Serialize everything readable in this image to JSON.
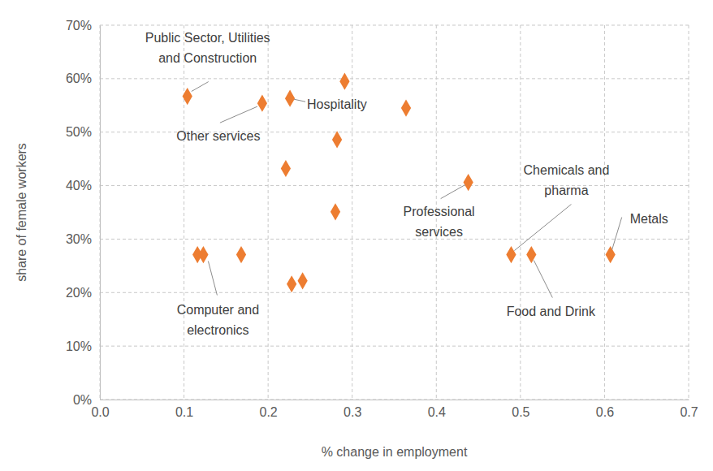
{
  "chart_data": {
    "type": "scatter",
    "x_label": "% change in employment",
    "y_label": "share of female workers",
    "x": [
      0.104,
      0.193,
      0.226,
      0.291,
      0.364,
      0.282,
      0.221,
      0.28,
      0.438,
      0.116,
      0.123,
      0.168,
      0.228,
      0.241,
      0.489,
      0.513,
      0.607
    ],
    "values": [
      56.7,
      55.4,
      56.3,
      59.5,
      54.5,
      48.6,
      43.2,
      35.1,
      40.6,
      27.1,
      27.1,
      27.1,
      21.6,
      22.2,
      27.1,
      27.1,
      27.1
    ],
    "labels": [
      "Public Sector, Utilities and Construction",
      "Other services",
      "Hospitality",
      null,
      null,
      null,
      null,
      null,
      "Professional services",
      null,
      "Computer and electronics",
      null,
      null,
      null,
      "Chemicals and pharma",
      "Food and Drink",
      "Metals"
    ],
    "color": "#ed7d31",
    "marker": "diamond",
    "xlim": [
      0,
      0.7
    ],
    "ylim": [
      0,
      70
    ],
    "xticks": [
      {
        "value": 0,
        "label": "0.0"
      },
      0.1,
      0.2,
      0.3,
      0.4,
      0.5,
      0.6,
      0.7
    ],
    "yticks": [
      {
        "value": 0,
        "label": "0%"
      },
      {
        "value": 10,
        "label": "10%"
      },
      {
        "value": 20,
        "label": "20%"
      },
      {
        "value": 30,
        "label": "30%"
      },
      {
        "value": 40,
        "label": "40%"
      },
      {
        "value": 50,
        "label": "50%"
      },
      {
        "value": 60,
        "label": "60%"
      },
      {
        "value": 70,
        "label": "70%"
      }
    ],
    "grid": true
  }
}
